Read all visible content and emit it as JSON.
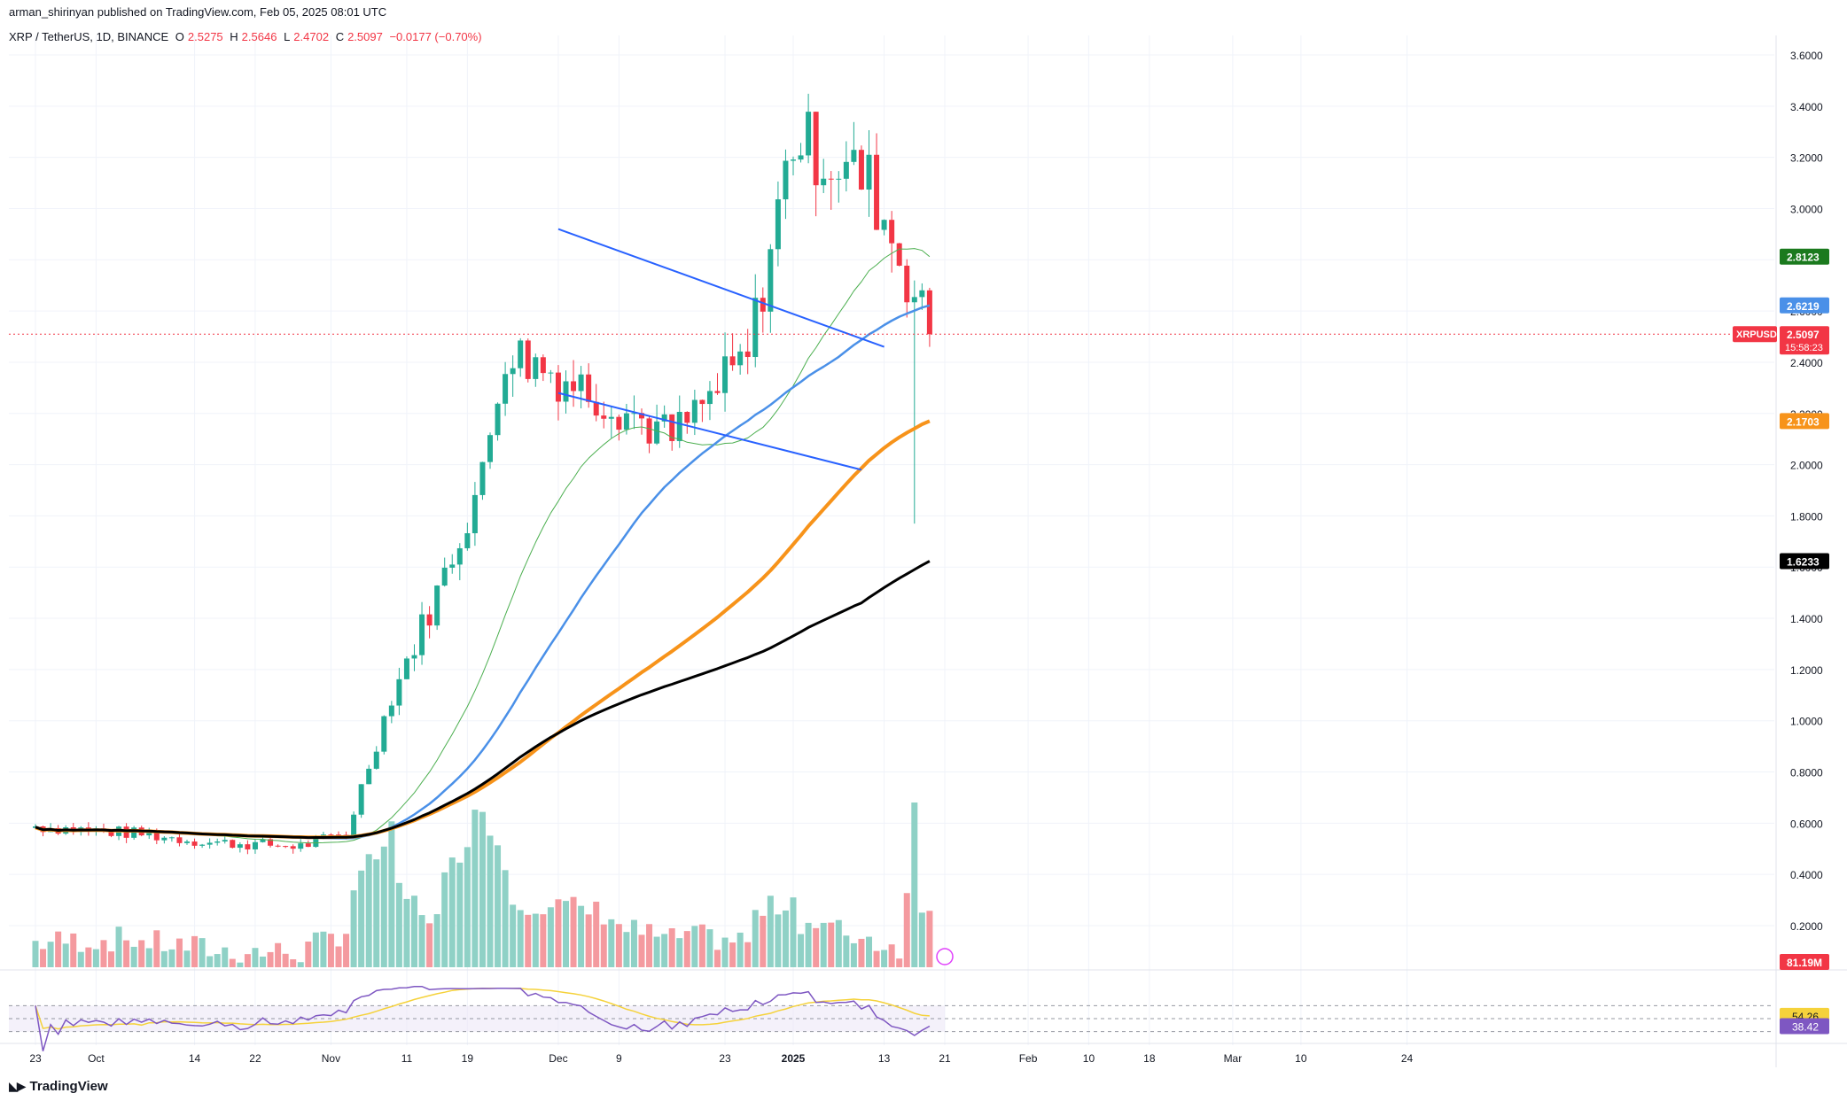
{
  "header": {
    "published": "arman_shirinyan published on TradingView.com, Feb 05, 2025 08:01 UTC",
    "symbol": "XRP / TetherUS, 1D, BINANCE",
    "o_label": "O",
    "o_value": "2.5275",
    "h_label": "H",
    "h_value": "2.5646",
    "l_label": "L",
    "l_value": "2.4702",
    "c_label": "C",
    "c_value": "2.5097",
    "change": "−0.0177 (−0.70%)"
  },
  "footer": {
    "logo_text": "TradingView"
  },
  "colors": {
    "up": "#22ab94",
    "down": "#f23645",
    "vol_up": "#8fd1c6",
    "vol_down": "#f49a9f",
    "ma_green": "#4caf50",
    "ma_blue": "#4a90e8",
    "ma_orange": "#f7931a",
    "ma_black": "#000000",
    "rsi": "#7e57c2",
    "rsi_ma": "#f5d23b",
    "trend": "#2962ff"
  },
  "chart_data": {
    "type": "candlestick",
    "title": "XRP / TetherUS, 1D, BINANCE",
    "ylim": [
      0.1,
      3.7
    ],
    "price_ticks": [
      3.6,
      3.4,
      3.2,
      3.0,
      2.8,
      2.6,
      2.4,
      2.2,
      2.0,
      1.8,
      1.6,
      1.4,
      1.2,
      1.0,
      0.8,
      0.6,
      0.4,
      0.2
    ],
    "price_tick_labels": [
      "3.6000",
      "3.4000",
      "3.2000",
      "3.0000",
      "2.8000",
      "2.6000",
      "2.4000",
      "2.2000",
      "2.0000",
      "1.8000",
      "1.6000",
      "1.4000",
      "1.2000",
      "1.0000",
      "0.8000",
      "0.6000",
      "0.4000",
      "0.2000"
    ],
    "x_labels": [
      {
        "day": 0,
        "text": "23"
      },
      {
        "day": 8,
        "text": "Oct"
      },
      {
        "day": 21,
        "text": "14"
      },
      {
        "day": 29,
        "text": "22"
      },
      {
        "day": 39,
        "text": "Nov"
      },
      {
        "day": 49,
        "text": "11"
      },
      {
        "day": 57,
        "text": "19"
      },
      {
        "day": 69,
        "text": "Dec"
      },
      {
        "day": 77,
        "text": "9"
      },
      {
        "day": 91,
        "text": "23"
      },
      {
        "day": 100,
        "text": "2025"
      },
      {
        "day": 112,
        "text": "13"
      },
      {
        "day": 120,
        "text": "21"
      },
      {
        "day": 131,
        "text": "Feb"
      },
      {
        "day": 139,
        "text": "10"
      },
      {
        "day": 147,
        "text": "18"
      },
      {
        "day": 158,
        "text": "Mar"
      },
      {
        "day": 167,
        "text": "10"
      },
      {
        "day": 181,
        "text": "24"
      }
    ],
    "candles_segments": [
      {
        "days": 14,
        "from": 0.59,
        "to": 0.56,
        "vol_from": 18,
        "vol_to": 22
      },
      {
        "days": 10,
        "from": 0.56,
        "to": 0.525,
        "vol_from": 20,
        "vol_to": 12
      },
      {
        "days": 12,
        "from": 0.525,
        "to": 0.51,
        "vol_from": 10,
        "vol_to": 9
      },
      {
        "days": 6,
        "from": 0.51,
        "to": 0.56,
        "vol_from": 9,
        "vol_to": 30
      },
      {
        "days": 6,
        "from": 0.56,
        "to": 1.1,
        "vol_from": 60,
        "vol_to": 120
      },
      {
        "days": 6,
        "from": 1.1,
        "to": 1.5,
        "vol_from": 70,
        "vol_to": 40
      },
      {
        "days": 6,
        "from": 1.5,
        "to": 1.95,
        "vol_from": 60,
        "vol_to": 150
      },
      {
        "days": 3,
        "from": 1.95,
        "to": 2.45,
        "vol_from": 150,
        "vol_to": 90
      },
      {
        "days": 14,
        "from": 2.45,
        "to": 2.25,
        "vol_from": 60,
        "vol_to": 45
      },
      {
        "days": 8,
        "from": 2.25,
        "to": 2.1,
        "vol_from": 35,
        "vol_to": 20
      },
      {
        "days": 10,
        "from": 2.1,
        "to": 2.42,
        "vol_from": 25,
        "vol_to": 20
      },
      {
        "days": 6,
        "from": 2.42,
        "to": 3.28,
        "vol_from": 40,
        "vol_to": 60
      },
      {
        "days": 10,
        "from": 3.28,
        "to": 3.1,
        "vol_from": 40,
        "vol_to": 22
      },
      {
        "days": 4,
        "from": 3.1,
        "to": 2.82,
        "vol_from": 20,
        "vol_to": 15
      },
      {
        "days": 4,
        "from": 2.82,
        "to": 2.51,
        "vol_from": 60,
        "vol_to": 55
      }
    ],
    "last_close": 2.5097,
    "price_tags": [
      {
        "name": "ma-green",
        "value": 2.8123,
        "text": "2.8123"
      },
      {
        "name": "ma-blue",
        "value": 2.6219,
        "text": "2.6219"
      },
      {
        "name": "ma-orange",
        "value": 2.1703,
        "text": "2.1703"
      },
      {
        "name": "ma-black",
        "value": 1.6233,
        "text": "1.6233"
      }
    ],
    "current_tag": {
      "symbol": "XRPUSDT",
      "price": "2.5097",
      "countdown": "15:58:23"
    },
    "volume_tag": "81.19M",
    "moving_averages": [
      {
        "name": "MA green",
        "last": 2.8123
      },
      {
        "name": "MA blue",
        "last": 2.6219
      },
      {
        "name": "MA orange",
        "last": 2.1703
      },
      {
        "name": "MA black",
        "last": 1.6233
      }
    ],
    "trendlines": [
      {
        "name": "upper",
        "x1": 69,
        "y1": 2.92,
        "x2": 112,
        "y2": 2.46
      },
      {
        "name": "lower",
        "x1": 69,
        "y1": 2.28,
        "x2": 109,
        "y2": 1.98
      }
    ],
    "rsi": {
      "upper": 70,
      "mid": 50,
      "lower": 30,
      "value": 38.42,
      "value_text": "38.42",
      "ma": 54.26,
      "ma_text": "54.26"
    },
    "total_days": 190
  }
}
